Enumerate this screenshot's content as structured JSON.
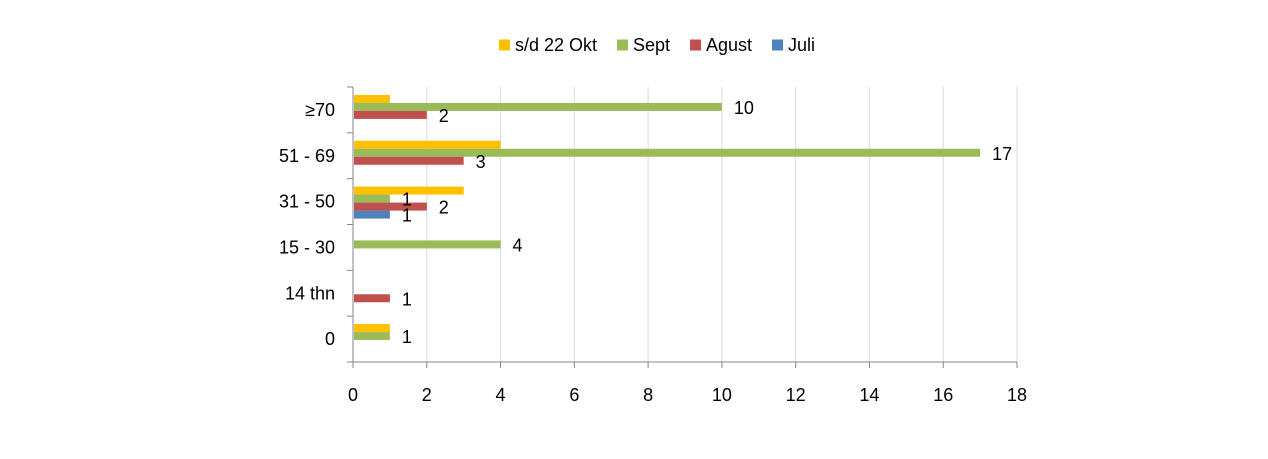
{
  "chart_data": {
    "type": "bar",
    "orientation": "horizontal",
    "title": "",
    "xlabel": "",
    "ylabel": "",
    "categories": [
      "≥70",
      "51 - 69",
      "31 - 50",
      "15 - 30",
      "14 thn",
      "0"
    ],
    "xlim": [
      0,
      18
    ],
    "xticks": [
      0,
      2,
      4,
      6,
      8,
      10,
      12,
      14,
      16,
      18
    ],
    "grid": "vertical",
    "legend_position": "top",
    "series": [
      {
        "name": "s/d 22 Okt",
        "color": "#FFC000",
        "values": [
          1,
          4,
          3,
          null,
          null,
          1
        ]
      },
      {
        "name": "Sept",
        "color": "#9BBB59",
        "values": [
          10,
          17,
          1,
          4,
          null,
          1
        ]
      },
      {
        "name": "Agust",
        "color": "#C0504D",
        "values": [
          2,
          3,
          2,
          null,
          1,
          null
        ]
      },
      {
        "name": "Juli",
        "color": "#4F81BD",
        "values": [
          null,
          null,
          1,
          null,
          null,
          null
        ]
      }
    ],
    "data_labels": [
      {
        "category": "≥70",
        "series": "Sept",
        "text": "10"
      },
      {
        "category": "≥70",
        "series": "Agust",
        "text": "2"
      },
      {
        "category": "51 - 69",
        "series": "Sept",
        "text": "17"
      },
      {
        "category": "51 - 69",
        "series": "Agust",
        "text": "3"
      },
      {
        "category": "31 - 50",
        "series": "Sept",
        "text": "1"
      },
      {
        "category": "31 - 50",
        "series": "Agust",
        "text": "2"
      },
      {
        "category": "31 - 50",
        "series": "Juli",
        "text": "1"
      },
      {
        "category": "15 - 30",
        "series": "Sept",
        "text": "4"
      },
      {
        "category": "14 thn",
        "series": "Agust",
        "text": "1"
      },
      {
        "category": "0",
        "series": "Sept",
        "text": "1"
      }
    ]
  }
}
